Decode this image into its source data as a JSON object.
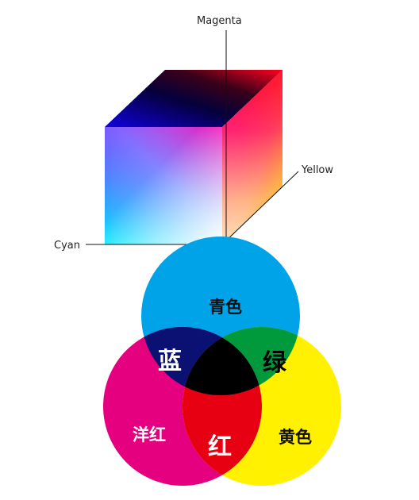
{
  "cube": {
    "axis_labels": {
      "magenta": "Magenta",
      "yellow": "Yellow",
      "cyan": "Cyan"
    },
    "colors": {
      "cyan": "#00e5ff",
      "blue": "#1b0aff",
      "black": "#000000",
      "magenta": "#ff1070",
      "red": "#ff0000",
      "yellow": "#fff000",
      "white": "#ffffff"
    }
  },
  "venn": {
    "labels": {
      "cyan": "青色",
      "blue": "蓝",
      "green": "绿",
      "magenta": "洋红",
      "red": "红",
      "yellow": "黄色"
    },
    "colors": {
      "cyan": "#00a3e8",
      "magenta": "#e4007f",
      "yellow": "#fff100",
      "blue": "#0a1172",
      "green": "#009a3c",
      "red": "#e60012",
      "black": "#000000"
    }
  }
}
